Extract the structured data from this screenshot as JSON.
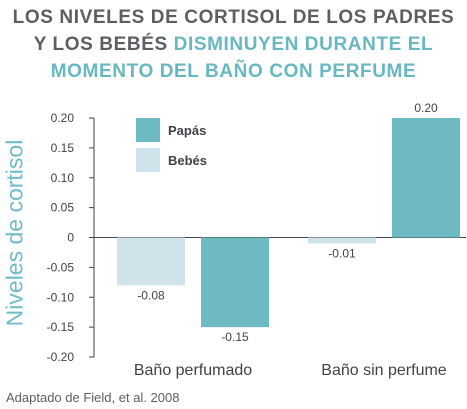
{
  "title": {
    "line1": "LOS NIVELES DE CORTISOL DE LOS PADRES",
    "line2_dark": "Y LOS BEBÉS",
    "line2_accent": "DISMINUYEN DURANTE EL",
    "line3": "MOMENTO DEL BAÑO CON PERFUME"
  },
  "source": "Adaptado de Field, et al. 2008",
  "colors": {
    "papas": "#6dbac3",
    "bebes": "#cfe4ea",
    "accent": "#68b8c1",
    "dark": "#5b5f63"
  },
  "chart_data": {
    "type": "bar",
    "categories": [
      "Baño perfumado",
      "Baño sin perfume"
    ],
    "series": [
      {
        "name": "Bebés",
        "values": [
          -0.08,
          -0.01
        ],
        "labels": [
          "-0.08",
          "-0.01"
        ]
      },
      {
        "name": "Papás",
        "values": [
          -0.15,
          0.2
        ],
        "labels": [
          "-0.15",
          "0.20"
        ]
      }
    ],
    "ylabel": "Niveles de cortisol",
    "ylim": [
      -0.2,
      0.2
    ],
    "yticks": [
      0.2,
      0.15,
      0.1,
      0.05,
      0,
      -0.05,
      -0.1,
      -0.15,
      -0.2
    ],
    "ytick_labels": [
      "0.20",
      "0.15",
      "0.10",
      "0.05",
      "0",
      "-0.05",
      "-0.10",
      "-0.15",
      "-0.20"
    ],
    "legend": [
      "Papás",
      "Bebés"
    ],
    "legend_position": "top-left",
    "grid": false
  }
}
